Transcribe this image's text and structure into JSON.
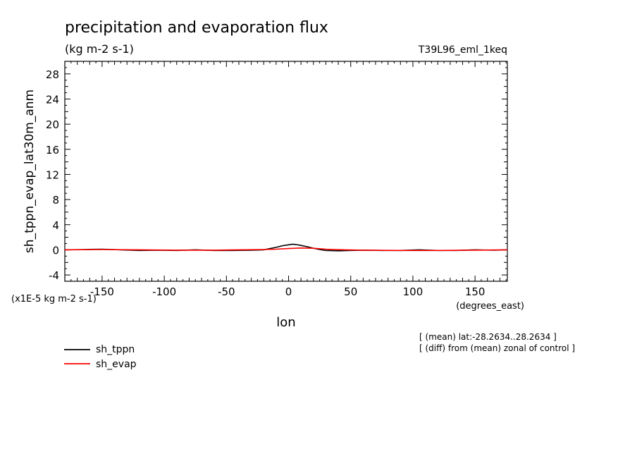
{
  "chart_data": {
    "type": "line",
    "title": "precipitation and evaporation flux",
    "subtitle": "(kg m-2 s-1)",
    "run_label": "T39L96_eml_1keq",
    "ylabel": "sh_tppn_evap_lat30m_anm",
    "xlabel": "lon",
    "x_units": "(degrees_east)",
    "y_scale_note": "(x1E-5 kg m-2 s-1)",
    "xlim": [
      -180,
      176
    ],
    "ylim": [
      -5,
      30
    ],
    "xticks": [
      -150,
      -100,
      -50,
      0,
      50,
      100,
      150
    ],
    "yticks": [
      -4,
      0,
      4,
      8,
      12,
      16,
      20,
      24,
      28
    ],
    "grid": false,
    "legend_position": "bottom-left",
    "notes": [
      "[ (mean) lat:-28.2634..28.2634 ]",
      "[ (diff) from (mean) zonal of control ]"
    ],
    "series": [
      {
        "name": "sh_tppn",
        "color": "#000000",
        "points": [
          [
            -180,
            0.0
          ],
          [
            -165,
            0.05
          ],
          [
            -150,
            0.1
          ],
          [
            -135,
            0.0
          ],
          [
            -120,
            -0.1
          ],
          [
            -105,
            -0.05
          ],
          [
            -90,
            -0.1
          ],
          [
            -75,
            0.0
          ],
          [
            -60,
            -0.1
          ],
          [
            -45,
            -0.1
          ],
          [
            -30,
            -0.05
          ],
          [
            -20,
            0.0
          ],
          [
            -15,
            0.2
          ],
          [
            -10,
            0.4
          ],
          [
            -5,
            0.65
          ],
          [
            0,
            0.8
          ],
          [
            3,
            0.9
          ],
          [
            6,
            0.85
          ],
          [
            10,
            0.7
          ],
          [
            15,
            0.5
          ],
          [
            20,
            0.25
          ],
          [
            25,
            0.05
          ],
          [
            30,
            -0.1
          ],
          [
            40,
            -0.15
          ],
          [
            50,
            -0.1
          ],
          [
            60,
            -0.05
          ],
          [
            75,
            -0.1
          ],
          [
            90,
            -0.1
          ],
          [
            105,
            0.0
          ],
          [
            120,
            -0.1
          ],
          [
            135,
            -0.1
          ],
          [
            150,
            0.0
          ],
          [
            165,
            -0.05
          ],
          [
            176,
            0.0
          ]
        ]
      },
      {
        "name": "sh_evap",
        "color": "#ff0000",
        "points": [
          [
            -180,
            0.0
          ],
          [
            -150,
            0.05
          ],
          [
            -120,
            0.0
          ],
          [
            -90,
            -0.05
          ],
          [
            -60,
            -0.05
          ],
          [
            -40,
            0.0
          ],
          [
            -20,
            0.05
          ],
          [
            -10,
            0.1
          ],
          [
            0,
            0.2
          ],
          [
            10,
            0.3
          ],
          [
            20,
            0.25
          ],
          [
            30,
            0.1
          ],
          [
            45,
            0.0
          ],
          [
            60,
            -0.05
          ],
          [
            90,
            -0.1
          ],
          [
            120,
            -0.1
          ],
          [
            150,
            -0.05
          ],
          [
            176,
            0.0
          ]
        ]
      }
    ]
  }
}
